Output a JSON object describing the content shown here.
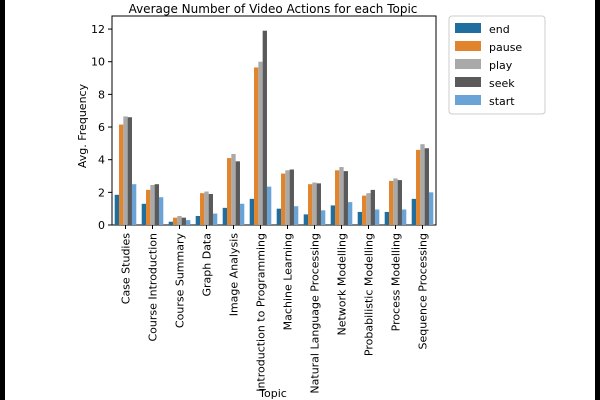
{
  "chart_data": {
    "type": "bar",
    "title": "Average Number of Video Actions for each Topic",
    "xlabel": "Topic",
    "ylabel": "Avg. Frequency",
    "ylim": [
      0,
      12.8
    ],
    "yticks": [
      0,
      2,
      4,
      6,
      8,
      10,
      12
    ],
    "grid": false,
    "legend_position": "outside-top-right",
    "categories": [
      "Case Studies",
      "Course Introduction",
      "Course Summary",
      "Graph Data",
      "Image Analysis",
      "Introduction to Programming",
      "Machine Learning",
      "Natural Language Processing",
      "Network Modelling",
      "Probabilistic Modelling",
      "Process Modelling",
      "Sequence Processing"
    ],
    "series": [
      {
        "name": "end",
        "color": "#1f6e9e",
        "values": [
          1.85,
          1.3,
          0.2,
          0.55,
          1.05,
          1.6,
          1.0,
          0.65,
          1.2,
          0.8,
          0.8,
          1.6
        ]
      },
      {
        "name": "pause",
        "color": "#e1842e",
        "values": [
          6.15,
          2.15,
          0.45,
          1.95,
          4.1,
          9.65,
          3.15,
          2.5,
          3.35,
          1.8,
          2.7,
          4.6
        ]
      },
      {
        "name": "play",
        "color": "#a9a9a9",
        "values": [
          6.65,
          2.45,
          0.55,
          2.05,
          4.35,
          10.0,
          3.35,
          2.6,
          3.55,
          1.95,
          2.85,
          4.95
        ]
      },
      {
        "name": "seek",
        "color": "#5a5a5a",
        "values": [
          6.6,
          2.5,
          0.45,
          1.9,
          3.9,
          11.9,
          3.4,
          2.55,
          3.3,
          2.15,
          2.75,
          4.7
        ]
      },
      {
        "name": "start",
        "color": "#6aa4d6",
        "values": [
          2.5,
          1.7,
          0.3,
          0.7,
          1.3,
          2.35,
          1.15,
          0.9,
          1.4,
          0.95,
          0.95,
          2.0
        ]
      }
    ]
  }
}
